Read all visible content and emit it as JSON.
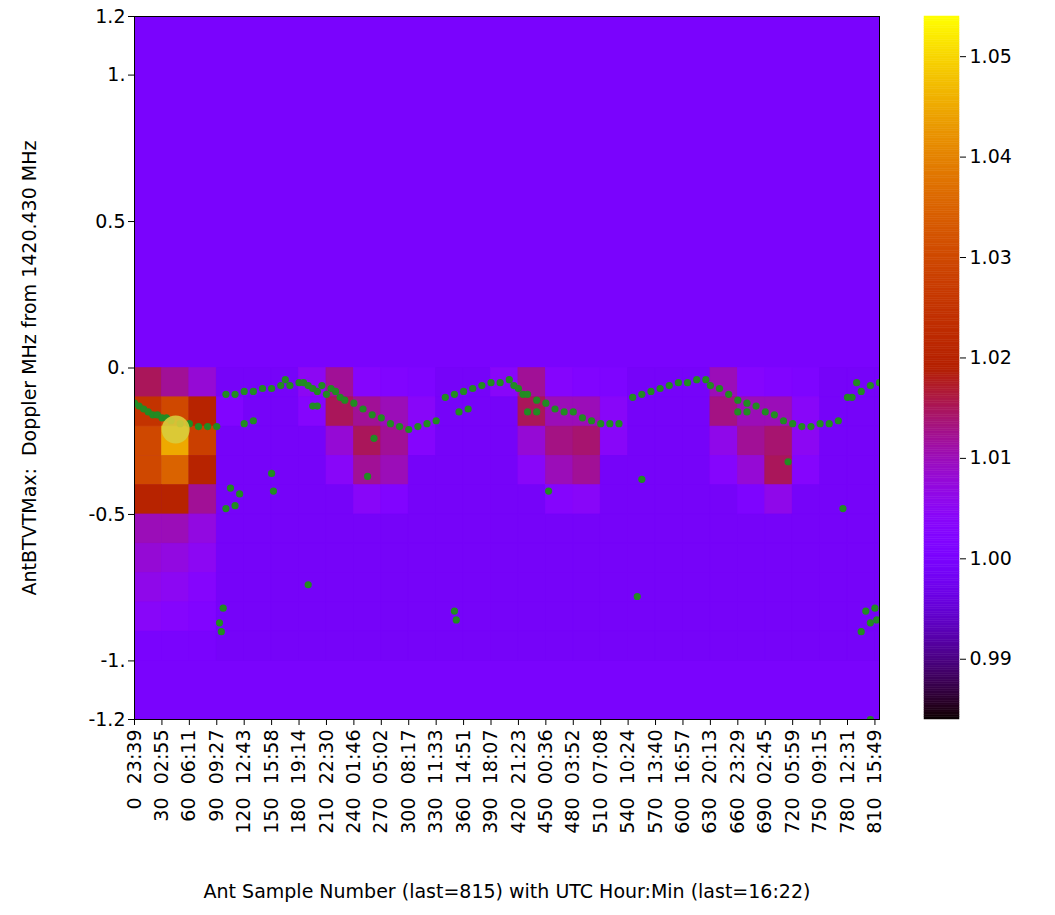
{
  "chart_data": {
    "type": "heatmap",
    "xlabel": "Ant Sample Number (last=815) with UTC Hour:Min (last=16:22)",
    "ylabel": "AntBTVTMax:  Doppler MHz from 1420.430 MHz",
    "xlim": [
      0,
      815
    ],
    "ylim": [
      -1.2,
      1.2
    ],
    "xticks": [
      {
        "value": 0,
        "label": "23:39"
      },
      {
        "value": 30,
        "label": "02:55"
      },
      {
        "value": 60,
        "label": "06:11"
      },
      {
        "value": 90,
        "label": "09:27"
      },
      {
        "value": 120,
        "label": "12:43"
      },
      {
        "value": 150,
        "label": "15:58"
      },
      {
        "value": 180,
        "label": "19:14"
      },
      {
        "value": 210,
        "label": "22:30"
      },
      {
        "value": 240,
        "label": "01:46"
      },
      {
        "value": 270,
        "label": "05:02"
      },
      {
        "value": 300,
        "label": "08:17"
      },
      {
        "value": 330,
        "label": "11:33"
      },
      {
        "value": 360,
        "label": "14:51"
      },
      {
        "value": 390,
        "label": "18:07"
      },
      {
        "value": 420,
        "label": "21:23"
      },
      {
        "value": 450,
        "label": "00:36"
      },
      {
        "value": 480,
        "label": "03:52"
      },
      {
        "value": 510,
        "label": "07:08"
      },
      {
        "value": 540,
        "label": "10:24"
      },
      {
        "value": 570,
        "label": "13:40"
      },
      {
        "value": 600,
        "label": "16:57"
      },
      {
        "value": 630,
        "label": "20:13"
      },
      {
        "value": 660,
        "label": "23:29"
      },
      {
        "value": 690,
        "label": "02:45"
      },
      {
        "value": 720,
        "label": "05:59"
      },
      {
        "value": 750,
        "label": "09:15"
      },
      {
        "value": 780,
        "label": "12:31"
      },
      {
        "value": 810,
        "label": "15:49"
      }
    ],
    "yticks": [
      {
        "value": -1.2,
        "label": "-1.2"
      },
      {
        "value": -1,
        "label": "-1."
      },
      {
        "value": -0.5,
        "label": "-0.5"
      },
      {
        "value": 0,
        "label": "0."
      },
      {
        "value": 0.5,
        "label": "0.5"
      },
      {
        "value": 1,
        "label": "1."
      },
      {
        "value": 1.2,
        "label": "1.2"
      }
    ],
    "heatmap": {
      "background": 1.0,
      "x_edges": [
        0,
        30,
        60,
        90,
        120,
        150,
        180,
        210,
        240,
        270,
        300,
        330,
        360,
        390,
        420,
        450,
        480,
        510,
        540,
        570,
        600,
        630,
        660,
        690,
        720,
        750,
        780,
        810,
        815
      ],
      "y_edges": [
        0,
        -0.1,
        -0.2,
        -0.3,
        -0.4,
        -0.5,
        -0.6,
        -0.7,
        -0.8,
        -0.9,
        -1.0
      ],
      "values": [
        [
          1.015,
          1.025,
          1.03,
          1.03,
          1.02,
          1.01,
          1.008,
          1.006,
          1.004,
          1.0
        ],
        [
          1.012,
          1.03,
          1.045,
          1.035,
          1.02,
          1.01,
          1.007,
          1.005,
          1.003,
          1.0
        ],
        [
          1.008,
          1.02,
          1.028,
          1.02,
          1.012,
          1.007,
          1.005,
          1.003,
          1.002,
          1.0
        ],
        [
          0.999,
          1.002,
          0.999,
          0.999,
          0.999,
          0.999,
          0.999,
          0.999,
          0.999,
          0.999
        ],
        [
          0.999,
          0.999,
          0.999,
          0.999,
          0.999,
          0.999,
          0.999,
          0.999,
          0.999,
          0.999
        ],
        [
          0.999,
          0.999,
          0.999,
          0.999,
          0.999,
          0.999,
          0.999,
          0.999,
          0.999,
          0.999
        ],
        [
          1.005,
          1.003,
          0.999,
          0.999,
          0.999,
          0.999,
          0.999,
          0.999,
          0.999,
          0.999
        ],
        [
          1.012,
          1.015,
          1.008,
          1.004,
          0.999,
          0.999,
          0.999,
          0.999,
          0.999,
          0.999
        ],
        [
          1.003,
          1.012,
          1.015,
          1.012,
          1.004,
          0.999,
          0.999,
          0.999,
          0.999,
          0.999
        ],
        [
          1.002,
          1.01,
          1.012,
          1.01,
          1.002,
          0.999,
          0.999,
          0.999,
          0.999,
          0.999
        ],
        [
          1.001,
          1.004,
          1.003,
          0.999,
          0.999,
          0.999,
          0.999,
          0.999,
          0.999,
          0.999
        ],
        [
          0.999,
          0.999,
          0.999,
          0.999,
          0.999,
          0.999,
          0.999,
          0.999,
          0.999,
          0.999
        ],
        [
          0.999,
          0.999,
          0.999,
          0.999,
          0.999,
          0.999,
          0.999,
          0.999,
          0.999,
          0.999
        ],
        [
          1.004,
          0.999,
          0.999,
          0.999,
          0.999,
          0.999,
          0.999,
          0.999,
          0.999,
          0.999
        ],
        [
          1.012,
          1.015,
          1.008,
          1.004,
          0.999,
          0.999,
          0.999,
          0.999,
          0.999,
          0.999
        ],
        [
          1.003,
          1.01,
          1.013,
          1.01,
          1.003,
          0.999,
          0.999,
          0.999,
          0.999,
          0.999
        ],
        [
          1.002,
          1.01,
          1.014,
          1.012,
          1.004,
          0.999,
          0.999,
          0.999,
          0.999,
          0.999
        ],
        [
          1.001,
          1.004,
          1.004,
          0.999,
          0.999,
          0.999,
          0.999,
          0.999,
          0.999,
          0.999
        ],
        [
          0.999,
          0.999,
          0.999,
          0.999,
          0.999,
          0.999,
          0.999,
          0.999,
          0.999,
          0.999
        ],
        [
          0.999,
          0.999,
          0.999,
          0.999,
          0.999,
          0.999,
          0.999,
          0.999,
          0.999,
          0.999
        ],
        [
          0.999,
          0.999,
          0.999,
          0.999,
          0.999,
          0.999,
          0.999,
          0.999,
          0.999,
          0.999
        ],
        [
          1.01,
          1.013,
          1.006,
          1.003,
          0.999,
          0.999,
          0.999,
          0.999,
          0.999,
          0.999
        ],
        [
          1.003,
          1.01,
          1.012,
          1.008,
          1.001,
          0.999,
          0.999,
          0.999,
          0.999,
          0.999
        ],
        [
          1.002,
          1.01,
          1.014,
          1.015,
          1.006,
          0.999,
          0.999,
          0.999,
          0.999,
          0.999
        ],
        [
          1.001,
          1.004,
          1.005,
          1.003,
          0.999,
          0.999,
          0.999,
          0.999,
          0.999,
          0.999
        ],
        [
          0.999,
          0.999,
          0.999,
          0.999,
          0.999,
          0.999,
          0.999,
          0.999,
          0.999,
          0.999
        ],
        [
          0.999,
          0.999,
          0.999,
          0.999,
          0.999,
          0.999,
          0.999,
          0.999,
          0.999,
          0.999
        ],
        [
          0.999,
          0.999,
          0.999,
          0.999,
          0.999,
          0.999,
          0.999,
          0.999,
          0.999,
          0.999
        ]
      ]
    },
    "colorbar": {
      "range": [
        0.984,
        1.054
      ],
      "ticks": [
        {
          "value": 0.99,
          "label": "0.99"
        },
        {
          "value": 1.0,
          "label": "1.00"
        },
        {
          "value": 1.01,
          "label": "1.01"
        },
        {
          "value": 1.02,
          "label": "1.02"
        },
        {
          "value": 1.03,
          "label": "1.03"
        },
        {
          "value": 1.04,
          "label": "1.04"
        },
        {
          "value": 1.05,
          "label": "1.05"
        }
      ]
    },
    "points": {
      "marker": "circle",
      "color": "#228b22",
      "x": [
        0,
        5,
        10,
        15,
        20,
        25,
        30,
        35,
        40,
        50,
        60,
        70,
        80,
        90,
        100,
        110,
        120,
        130,
        140,
        150,
        160,
        165,
        170,
        180,
        185,
        190,
        195,
        200,
        205,
        210,
        215,
        220,
        225,
        230,
        240,
        250,
        260,
        270,
        280,
        290,
        300,
        310,
        320,
        330,
        340,
        350,
        360,
        370,
        380,
        390,
        400,
        410,
        415,
        420,
        425,
        430,
        440,
        450,
        460,
        470,
        480,
        490,
        500,
        510,
        520,
        530,
        545,
        555,
        565,
        575,
        585,
        595,
        605,
        615,
        625,
        630,
        640,
        650,
        660,
        670,
        680,
        690,
        700,
        710,
        720,
        730,
        740,
        750,
        760,
        770,
        785,
        795,
        805,
        815,
        195,
        200,
        430,
        440,
        660,
        670,
        93,
        95,
        97,
        100,
        105,
        110,
        115,
        120,
        130,
        150,
        152,
        190,
        255,
        262,
        350,
        352,
        355,
        365,
        453,
        550,
        555,
        715,
        775,
        780,
        790,
        795,
        800,
        805,
        810,
        812,
        805
      ],
      "y": [
        -0.12,
        -0.13,
        -0.14,
        -0.15,
        -0.16,
        -0.16,
        -0.17,
        -0.17,
        -0.18,
        -0.19,
        -0.19,
        -0.2,
        -0.2,
        -0.2,
        -0.09,
        -0.09,
        -0.08,
        -0.08,
        -0.07,
        -0.07,
        -0.06,
        -0.04,
        -0.06,
        -0.05,
        -0.05,
        -0.06,
        -0.07,
        -0.08,
        -0.06,
        -0.09,
        -0.07,
        -0.08,
        -0.1,
        -0.11,
        -0.12,
        -0.14,
        -0.16,
        -0.17,
        -0.19,
        -0.2,
        -0.21,
        -0.2,
        -0.19,
        -0.18,
        -0.1,
        -0.09,
        -0.08,
        -0.07,
        -0.06,
        -0.05,
        -0.05,
        -0.04,
        -0.06,
        -0.07,
        -0.09,
        -0.09,
        -0.11,
        -0.12,
        -0.14,
        -0.15,
        -0.15,
        -0.17,
        -0.18,
        -0.19,
        -0.19,
        -0.19,
        -0.1,
        -0.09,
        -0.08,
        -0.07,
        -0.06,
        -0.05,
        -0.05,
        -0.04,
        -0.04,
        -0.06,
        -0.07,
        -0.09,
        -0.11,
        -0.12,
        -0.13,
        -0.15,
        -0.16,
        -0.18,
        -0.19,
        -0.2,
        -0.2,
        -0.19,
        -0.19,
        -0.18,
        -0.1,
        -0.08,
        -0.06,
        -0.05,
        -0.13,
        -0.13,
        -0.15,
        -0.15,
        -0.15,
        -0.15,
        -0.87,
        -0.9,
        -0.82,
        -0.48,
        -0.41,
        -0.47,
        -0.43,
        -0.19,
        -0.18,
        -0.36,
        -0.42,
        -0.74,
        -0.37,
        -0.24,
        -0.83,
        -0.86,
        -0.15,
        -0.14,
        -0.42,
        -0.78,
        -0.38,
        -0.32,
        -0.48,
        -0.1,
        -0.05,
        -0.9,
        -0.83,
        -0.87,
        -0.82,
        -0.86,
        -1.2
      ]
    },
    "highlight": {
      "x": [
        45
      ],
      "y": [
        -0.21
      ],
      "color": "#d8cc3c",
      "marker": "circle"
    }
  }
}
